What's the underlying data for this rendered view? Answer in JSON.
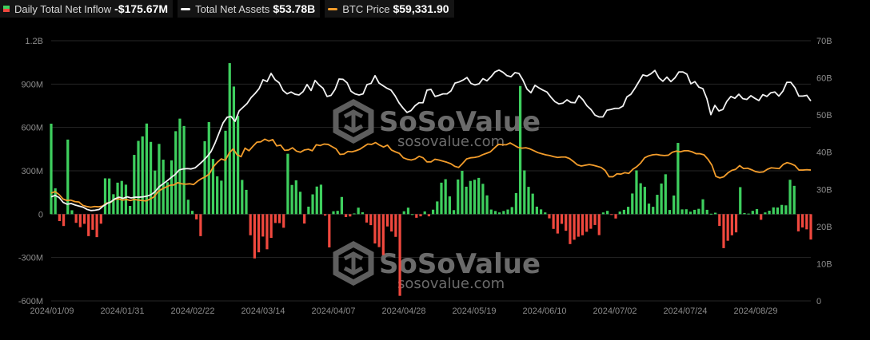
{
  "legend": {
    "inflow": {
      "label": "Daily Total Net Inflow",
      "value": "-$175.67M"
    },
    "assets": {
      "label": "Total Net Assets",
      "value": "$53.78B"
    },
    "btc": {
      "label": "BTC Price",
      "value": "$59,331.90"
    }
  },
  "watermark": {
    "brand": "SoSoValue",
    "url": "sosovalue.com"
  },
  "colors": {
    "positive": "#3ecf5e",
    "negative": "#f0483e",
    "assets": "#f2f2f2",
    "btc": "#f29c2b",
    "grid": "#262626"
  },
  "chart_data": {
    "type": "bar",
    "title": "",
    "grid": true,
    "x_tick_labels": [
      "2024/01/09",
      "2024/01/31",
      "2024/02/22",
      "2024/03/14",
      "2024/04/07",
      "2024/04/28",
      "2024/05/19",
      "2024/06/10",
      "2024/07/02",
      "2024/07/24",
      "2024/08/29"
    ],
    "y_left": {
      "ticks": [
        "-600M",
        "-300M",
        "0",
        "300M",
        "600M",
        "900M",
        "1.2B"
      ],
      "range_millions": [
        -600,
        1200
      ]
    },
    "y_right": {
      "ticks": [
        "0",
        "10B",
        "20B",
        "30B",
        "40B",
        "50B",
        "60B",
        "70B"
      ],
      "range_billions": [
        0,
        70
      ]
    },
    "series": [
      {
        "name": "Daily Total Net Inflow",
        "kind": "bar",
        "unit": "M USD",
        "values": [
          626,
          179,
          -48,
          -82,
          516,
          27,
          -60,
          -90,
          -67,
          -152,
          -108,
          -159,
          -66,
          248,
          247,
          138,
          218,
          230,
          204,
          57,
          410,
          507,
          538,
          627,
          500,
          302,
          486,
          377,
          221,
          372,
          574,
          661,
          610,
          100,
          23,
          -36,
          -152,
          505,
          637,
          382,
          262,
          232,
          577,
          1045,
          883,
          680,
          237,
          168,
          -146,
          -306,
          -264,
          -155,
          -243,
          -164,
          -61,
          -62,
          -94,
          418,
          202,
          234,
          155,
          -65,
          52,
          137,
          191,
          204,
          -10,
          -230,
          20,
          23,
          119,
          -20,
          -16,
          5,
          45,
          13,
          -58,
          -76,
          -203,
          -228,
          -283,
          -85,
          -120,
          -157,
          -565,
          20,
          45,
          0,
          -25,
          -15,
          19,
          -15,
          31,
          88,
          218,
          242,
          123,
          28,
          240,
          300,
          190,
          230,
          238,
          251,
          210,
          130,
          32,
          22,
          12,
          22,
          32,
          49,
          146,
          887,
          303,
          189,
          142,
          52,
          33,
          12,
          -29,
          -102,
          -134,
          -67,
          -115,
          -207,
          -177,
          -156,
          -146,
          -122,
          -101,
          -75,
          -145,
          12,
          23,
          -3,
          -30,
          18,
          30,
          51,
          143,
          303,
          214,
          189,
          73,
          51,
          134,
          212,
          276,
          29,
          129,
          493,
          33,
          34,
          17,
          30,
          37,
          103,
          30,
          3,
          10,
          -81,
          -235,
          -184,
          -146,
          -126,
          187,
          8,
          4,
          23,
          35,
          -39,
          12,
          24,
          47,
          46,
          64,
          61,
          238,
          196,
          -119,
          -92,
          -105,
          -175.67
        ]
      },
      {
        "name": "Total Net Assets",
        "kind": "line",
        "unit": "B USD",
        "values": [
          28.0,
          28.4,
          27.8,
          26.5,
          26.0,
          26.2,
          25.8,
          25.5,
          25.2,
          24.6,
          24.3,
          24.4,
          24.6,
          25.5,
          26.2,
          26.7,
          27.5,
          27.9,
          27.6,
          28.0,
          27.7,
          27.9,
          27.9,
          28.0,
          28.2,
          28.6,
          29.4,
          30.7,
          31.5,
          32.3,
          33.2,
          34.0,
          35.2,
          35.5,
          35.6,
          35.5,
          35.8,
          36.7,
          37.7,
          38.8,
          40.2,
          42.5,
          45.2,
          47.9,
          49.4,
          49.6,
          48.3,
          51.1,
          52.1,
          53.1,
          54.7,
          55.8,
          57.1,
          59.5,
          59.0,
          61.2,
          59.5,
          58.7,
          56.6,
          55.7,
          56.2,
          55.6,
          55.4,
          56.3,
          58.2,
          56.6,
          59.3,
          58.1,
          57.2,
          55.0,
          55.3,
          56.9,
          59.7,
          59.6,
          58.7,
          56.4,
          55.7,
          55.4,
          55.7,
          58.2,
          58.5,
          60.6,
          58.6,
          57.9,
          57.2,
          56.7,
          55.2,
          53.3,
          51.9,
          50.7,
          51.2,
          52.5,
          53.3,
          53.3,
          56.7,
          56.9,
          55.0,
          55.3,
          55.7,
          55.7,
          56.5,
          58.6,
          58.9,
          59.4,
          60.1,
          58.5,
          58.1,
          58.4,
          59.8,
          59.2,
          60.3,
          61.6,
          62.1,
          61.5,
          60.6,
          60.3,
          61.4,
          61.2,
          59.4,
          57.0,
          56.0,
          58.0,
          57.3,
          56.7,
          56.2,
          54.8,
          53.6,
          53.0,
          53.2,
          54.1,
          53.4,
          53.3,
          55.2,
          54.1,
          52.5,
          51.5,
          50.0,
          49.5,
          49.5,
          51.3,
          51.5,
          51.8,
          51.8,
          52.4,
          54.9,
          55.6,
          57.2,
          59.0,
          60.8,
          60.5,
          61.1,
          62.0,
          60.0,
          59.1,
          60.2,
          59.0,
          60.0,
          61.6,
          61.6,
          61.0,
          58.4,
          59.0,
          57.5,
          57.1,
          54.4,
          50.1,
          52.6,
          51.1,
          51.5,
          53.7,
          55.0,
          54.5,
          55.6,
          54.4,
          54.2,
          55.2,
          54.5,
          53.9,
          55.5,
          55.0,
          56.0,
          56.2,
          55.1,
          56.4,
          58.8,
          58.8,
          57.4,
          55.1,
          55.1,
          55.3,
          53.78
        ]
      },
      {
        "name": "BTC Price",
        "kind": "line",
        "unit": "scaled to right axis",
        "values": [
          29.0,
          29.4,
          28.6,
          27.4,
          27.0,
          27.1,
          26.7,
          26.6,
          25.7,
          25.4,
          25.2,
          25.4,
          25.3,
          25.5,
          26.3,
          26.5,
          27.3,
          27.5,
          27.1,
          27.3,
          27.0,
          27.3,
          27.1,
          27.0,
          26.9,
          27.4,
          28.0,
          29.4,
          30.1,
          30.6,
          31.1,
          31.2,
          31.8,
          31.5,
          31.4,
          31.5,
          31.3,
          32.2,
          32.9,
          33.4,
          34.2,
          36.1,
          37.3,
          38.2,
          37.8,
          39.8,
          40.9,
          39.3,
          38.8,
          41.1,
          40.4,
          41.6,
          42.7,
          42.8,
          43.5,
          43.0,
          43.4,
          41.7,
          41.9,
          40.5,
          40.6,
          41.2,
          40.3,
          40.0,
          40.6,
          40.8,
          40.4,
          42.0,
          41.8,
          42.2,
          42.1,
          41.5,
          40.9,
          39.4,
          39.5,
          40.2,
          40.1,
          40.4,
          40.8,
          41.5,
          42.2,
          42.1,
          42.6,
          41.9,
          41.4,
          41.9,
          40.6,
          40.1,
          39.7,
          38.5,
          38.1,
          37.9,
          38.2,
          38.9,
          38.5,
          37.4,
          37.4,
          38.1,
          37.9,
          37.6,
          37.3,
          36.9,
          36.2,
          35.9,
          37.0,
          38.2,
          38.5,
          38.6,
          38.8,
          39.3,
          39.7,
          40.1,
          41.1,
          42.1,
          42.0,
          42.0,
          42.5,
          41.9,
          41.3,
          41.1,
          41.2,
          40.9,
          40.4,
          39.9,
          39.6,
          39.3,
          39.1,
          38.8,
          38.6,
          38.7,
          38.7,
          38.3,
          37.5,
          36.6,
          36.3,
          36.5,
          36.7,
          36.5,
          36.2,
          35.9,
          35.1,
          33.4,
          33.4,
          34.2,
          34.1,
          34.5,
          34.3,
          35.4,
          36.1,
          37.1,
          38.5,
          39.0,
          39.3,
          39.4,
          39.2,
          39.1,
          39.2,
          40.0,
          40.3,
          40.1,
          40.4,
          40.4,
          40.1,
          39.6,
          39.6,
          39.3,
          38.1,
          36.5,
          33.5,
          33.1,
          33.4,
          34.4,
          35.1,
          35.4,
          36.4,
          35.6,
          35.7,
          35.3,
          34.8,
          34.6,
          34.7,
          35.4,
          35.8,
          35.7,
          35.6,
          36.7,
          37.2,
          36.9,
          36.4,
          35.2,
          35.2,
          35.3,
          35.2
        ]
      }
    ]
  }
}
